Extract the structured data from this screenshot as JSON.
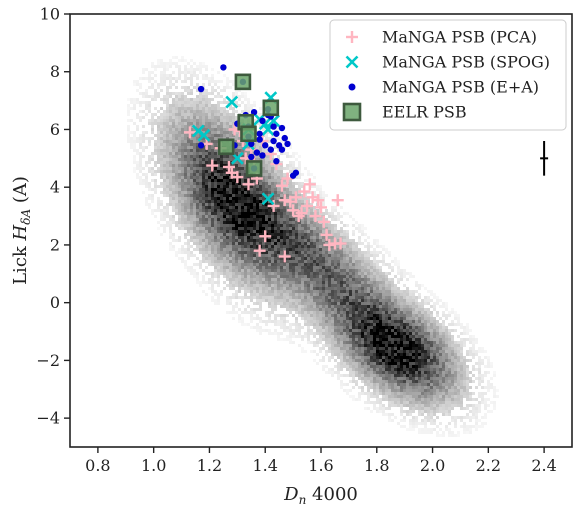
{
  "chart_data": {
    "type": "scatter",
    "xlabel": "D_n 4000",
    "ylabel": "Lick H_δA (A)",
    "xlim": [
      0.7,
      2.5
    ],
    "ylim": [
      -5,
      10
    ],
    "x_ticks": [
      0.8,
      1.0,
      1.2,
      1.4,
      1.6,
      1.8,
      2.0,
      2.2,
      2.4
    ],
    "x_tick_labels": [
      "0.8",
      "1.0",
      "1.2",
      "1.4",
      "1.6",
      "1.8",
      "2.0",
      "2.2",
      "2.4"
    ],
    "y_ticks": [
      -4,
      -2,
      0,
      2,
      4,
      6,
      8,
      10
    ],
    "y_tick_labels": [
      "−4",
      "−2",
      "0",
      "2",
      "4",
      "6",
      "8",
      "10"
    ],
    "legend_position": "top-right",
    "background_density": {
      "description_color": "#000000",
      "blobs": [
        {
          "x": 1.28,
          "y": 3.6,
          "sx": 0.13,
          "sy": 1.7,
          "rho": -0.55,
          "weight": 1.0
        },
        {
          "x": 1.55,
          "y": 1.8,
          "sx": 0.18,
          "sy": 1.5,
          "rho": -0.8,
          "weight": 0.55
        },
        {
          "x": 1.88,
          "y": -1.7,
          "sx": 0.12,
          "sy": 1.0,
          "rho": -0.45,
          "weight": 0.95
        },
        {
          "x": 1.75,
          "y": -0.6,
          "sx": 0.16,
          "sy": 1.3,
          "rho": -0.75,
          "weight": 0.35
        }
      ]
    },
    "series": [
      {
        "name": "MaNGA PSB (PCA)",
        "marker": "plus",
        "color": "#ffb6c1",
        "points": [
          [
            1.13,
            5.9
          ],
          [
            1.19,
            5.5
          ],
          [
            1.21,
            4.75
          ],
          [
            1.24,
            5.35
          ],
          [
            1.27,
            4.7
          ],
          [
            1.28,
            4.5
          ],
          [
            1.3,
            4.35
          ],
          [
            1.29,
            6.0
          ],
          [
            1.32,
            5.6
          ],
          [
            1.33,
            5.0
          ],
          [
            1.35,
            5.3
          ],
          [
            1.36,
            4.9
          ],
          [
            1.37,
            4.3
          ],
          [
            1.39,
            5.6
          ],
          [
            1.42,
            5.15
          ],
          [
            1.44,
            4.8
          ],
          [
            1.43,
            3.35
          ],
          [
            1.46,
            4.05
          ],
          [
            1.47,
            3.55
          ],
          [
            1.48,
            4.3
          ],
          [
            1.49,
            3.5
          ],
          [
            1.5,
            3.2
          ],
          [
            1.51,
            3.65
          ],
          [
            1.52,
            3.0
          ],
          [
            1.53,
            3.1
          ],
          [
            1.54,
            3.85
          ],
          [
            1.55,
            3.35
          ],
          [
            1.56,
            4.1
          ],
          [
            1.57,
            3.65
          ],
          [
            1.58,
            3.0
          ],
          [
            1.59,
            3.55
          ],
          [
            1.61,
            2.8
          ],
          [
            1.6,
            3.3
          ],
          [
            1.62,
            2.35
          ],
          [
            1.63,
            2.0
          ],
          [
            1.65,
            2.05
          ],
          [
            1.66,
            3.55
          ],
          [
            1.67,
            2.05
          ],
          [
            1.4,
            2.3
          ],
          [
            1.38,
            1.8
          ],
          [
            1.47,
            1.6
          ],
          [
            1.34,
            4.1
          ],
          [
            1.31,
            5.95
          ]
        ]
      },
      {
        "name": "MaNGA PSB (SPOG)",
        "marker": "x",
        "color": "#00c8c8",
        "points": [
          [
            1.16,
            5.95
          ],
          [
            1.18,
            5.8
          ],
          [
            1.28,
            6.95
          ],
          [
            1.3,
            5.0
          ],
          [
            1.34,
            6.0
          ],
          [
            1.38,
            6.35
          ],
          [
            1.4,
            6.2
          ],
          [
            1.41,
            6.0
          ],
          [
            1.42,
            7.1
          ],
          [
            1.43,
            6.3
          ],
          [
            1.41,
            3.6
          ],
          [
            1.34,
            5.5
          ]
        ]
      },
      {
        "name": "MaNGA PSB (E+A)",
        "marker": "dot",
        "color": "#0000d0",
        "points": [
          [
            1.17,
            7.4
          ],
          [
            1.17,
            5.45
          ],
          [
            1.25,
            8.15
          ],
          [
            1.29,
            5.45
          ],
          [
            1.32,
            7.65
          ],
          [
            1.33,
            6.5
          ],
          [
            1.34,
            6.1
          ],
          [
            1.34,
            5.75
          ],
          [
            1.35,
            5.5
          ],
          [
            1.35,
            5.05
          ],
          [
            1.36,
            6.6
          ],
          [
            1.36,
            4.65
          ],
          [
            1.37,
            5.2
          ],
          [
            1.38,
            5.85
          ],
          [
            1.38,
            5.65
          ],
          [
            1.39,
            6.3
          ],
          [
            1.39,
            5.1
          ],
          [
            1.4,
            5.45
          ],
          [
            1.41,
            6.7
          ],
          [
            1.41,
            6.5
          ],
          [
            1.42,
            6.45
          ],
          [
            1.42,
            5.3
          ],
          [
            1.43,
            6.1
          ],
          [
            1.43,
            5.6
          ],
          [
            1.44,
            5.85
          ],
          [
            1.44,
            4.9
          ],
          [
            1.45,
            5.45
          ],
          [
            1.46,
            6.05
          ],
          [
            1.46,
            5.3
          ],
          [
            1.47,
            5.7
          ],
          [
            1.48,
            5.5
          ],
          [
            1.5,
            4.4
          ],
          [
            1.51,
            4.5
          ],
          [
            1.3,
            6.2
          ]
        ]
      },
      {
        "name": "EELR PSB",
        "marker": "square",
        "color": "#6aa56a",
        "edge": "#3e5a3e",
        "points": [
          [
            1.32,
            7.65
          ],
          [
            1.42,
            6.75
          ],
          [
            1.33,
            6.25
          ],
          [
            1.34,
            5.85
          ],
          [
            1.26,
            5.4
          ],
          [
            1.36,
            4.65
          ]
        ]
      }
    ],
    "error_bar": {
      "x": 2.4,
      "y": 5.0,
      "yerr": 0.6,
      "xerr": 0.01,
      "color": "#000000"
    },
    "legend": [
      {
        "label": "MaNGA PSB (PCA)",
        "marker": "plus",
        "color": "#ffb6c1"
      },
      {
        "label": "MaNGA PSB (SPOG)",
        "marker": "x",
        "color": "#00c8c8"
      },
      {
        "label": "MaNGA PSB (E+A)",
        "marker": "dot",
        "color": "#0000d0"
      },
      {
        "label": "EELR PSB",
        "marker": "square",
        "color": "#6aa56a",
        "edge": "#3e5a3e"
      }
    ]
  }
}
